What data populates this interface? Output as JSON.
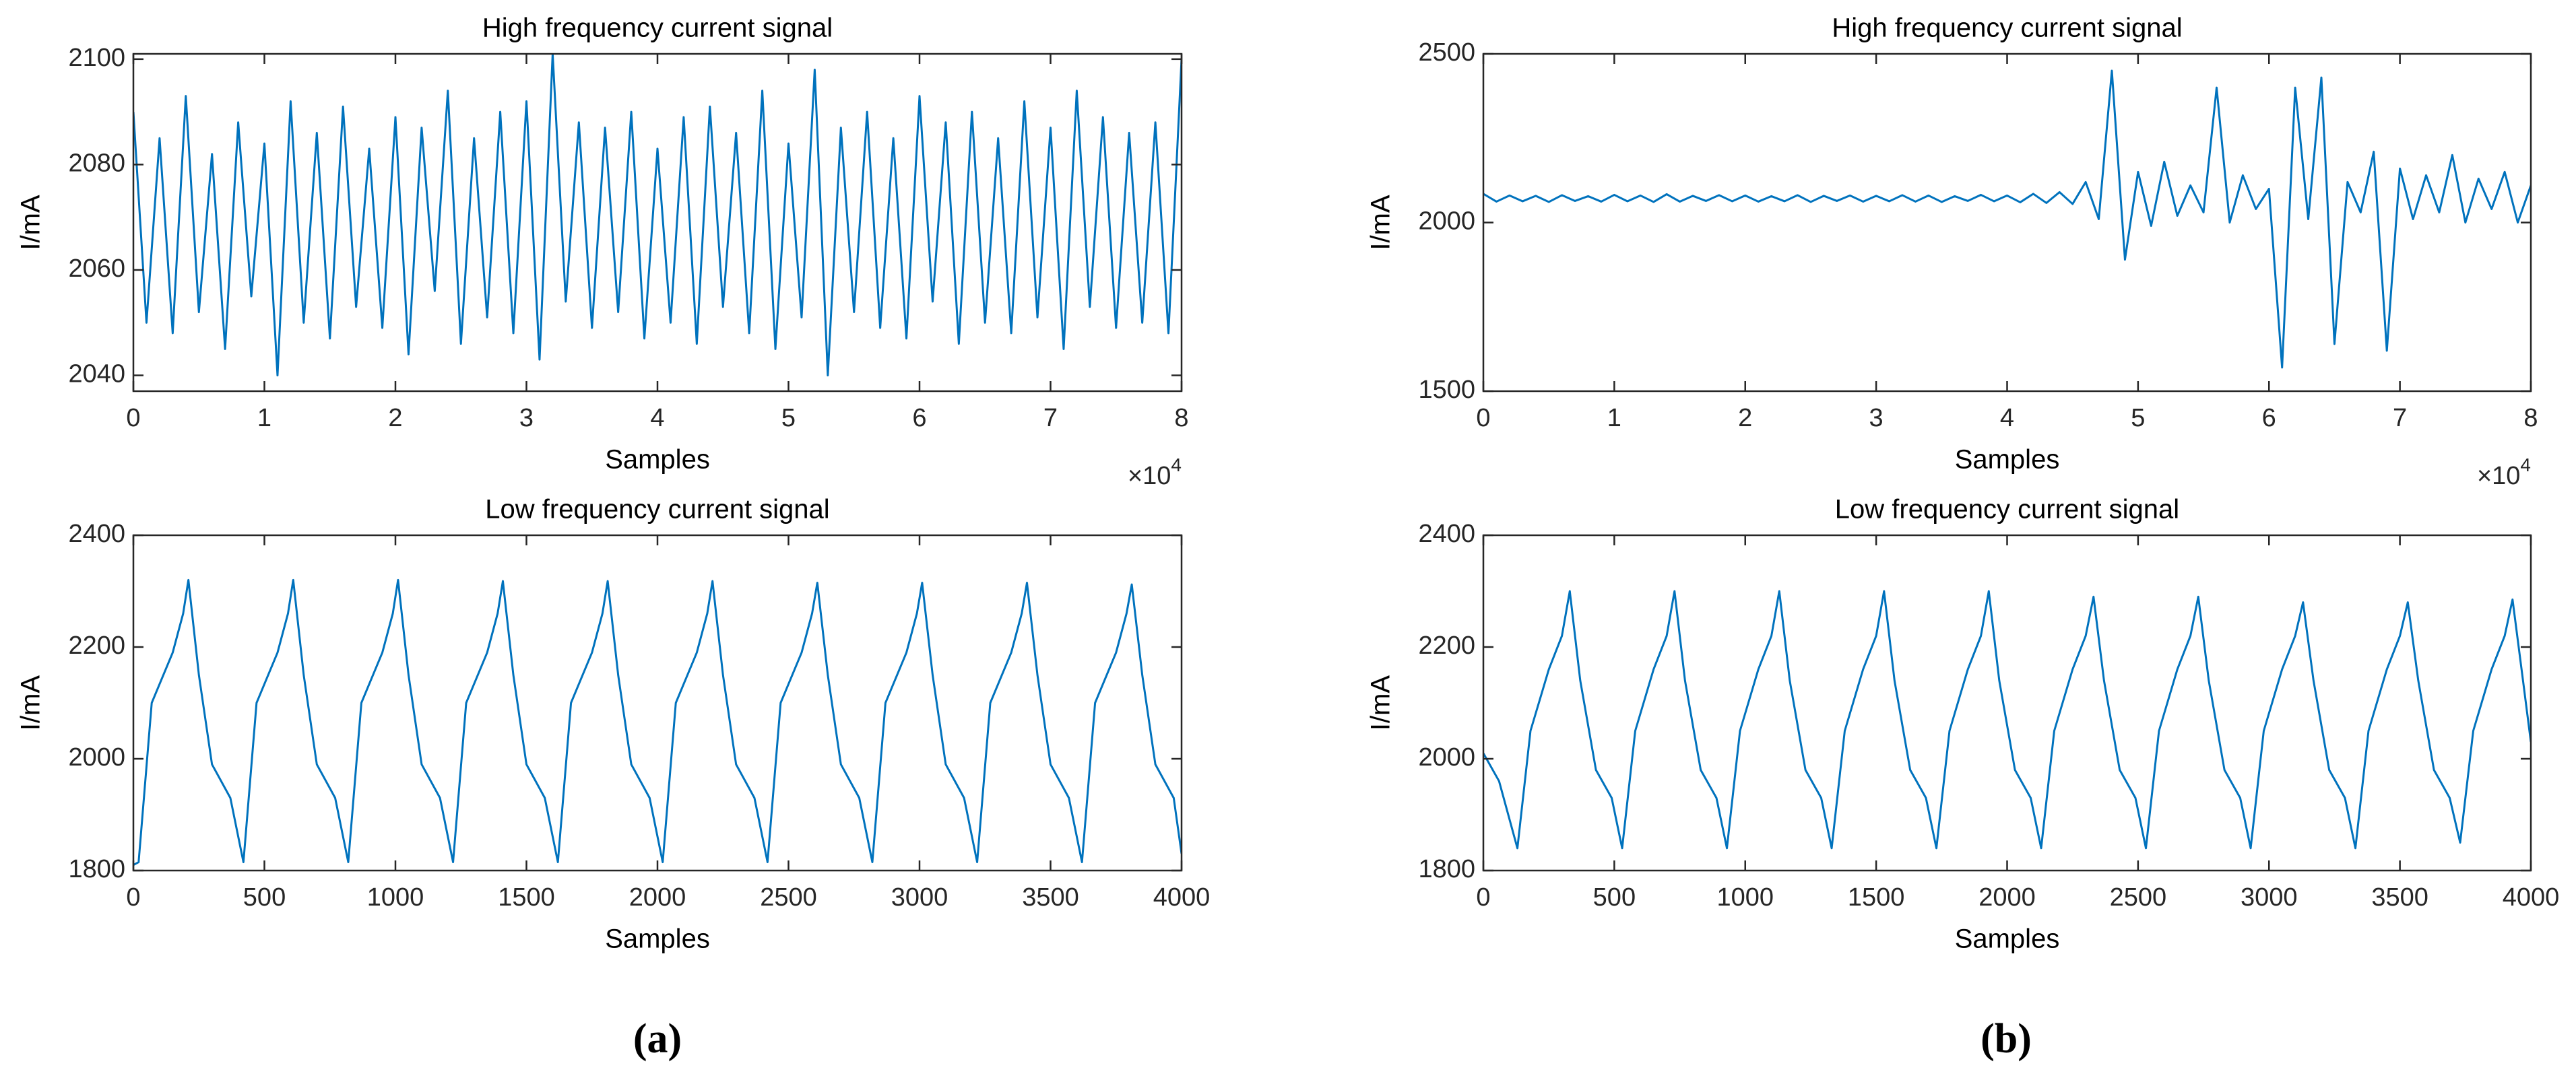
{
  "chart_data": [
    {
      "type": "line",
      "title": "High frequency current signal",
      "xlabel": "Samples",
      "ylabel": "I/mA",
      "color": "#0072bd",
      "x_multiplier": {
        "base": "×10",
        "exponent": "4"
      },
      "xlim": [
        0,
        80000
      ],
      "ylim": [
        2037,
        2101
      ],
      "xticks": [
        0,
        {
          "value": 10000,
          "label": "1"
        },
        {
          "value": 20000,
          "label": "2"
        },
        {
          "value": 30000,
          "label": "3"
        },
        {
          "value": 40000,
          "label": "4"
        },
        {
          "value": 50000,
          "label": "5"
        },
        {
          "value": 60000,
          "label": "6"
        },
        {
          "value": 70000,
          "label": "7"
        },
        {
          "value": 80000,
          "label": "8"
        }
      ],
      "yticks": [
        2040,
        2060,
        2080,
        2100
      ],
      "x": [
        0,
        1000,
        2000,
        3000,
        4000,
        5000,
        6000,
        7000,
        8000,
        9000,
        10000,
        11000,
        12000,
        13000,
        14000,
        15000,
        16000,
        17000,
        18000,
        19000,
        20000,
        21000,
        22000,
        23000,
        24000,
        25000,
        26000,
        27000,
        28000,
        29000,
        30000,
        31000,
        32000,
        33000,
        34000,
        35000,
        36000,
        37000,
        38000,
        39000,
        40000,
        41000,
        42000,
        43000,
        44000,
        45000,
        46000,
        47000,
        48000,
        49000,
        50000,
        51000,
        52000,
        53000,
        54000,
        55000,
        56000,
        57000,
        58000,
        59000,
        60000,
        61000,
        62000,
        63000,
        64000,
        65000,
        66000,
        67000,
        68000,
        69000,
        70000,
        71000,
        72000,
        73000,
        74000,
        75000,
        76000,
        77000,
        78000,
        79000,
        80000
      ],
      "values": [
        2090,
        2050,
        2085,
        2048,
        2093,
        2052,
        2082,
        2045,
        2088,
        2055,
        2084,
        2040,
        2092,
        2050,
        2086,
        2047,
        2091,
        2053,
        2083,
        2049,
        2089,
        2044,
        2087,
        2056,
        2094,
        2046,
        2085,
        2051,
        2090,
        2048,
        2092,
        2043,
        2101,
        2054,
        2088,
        2049,
        2087,
        2052,
        2090,
        2047,
        2083,
        2050,
        2089,
        2046,
        2091,
        2053,
        2086,
        2048,
        2094,
        2045,
        2084,
        2051,
        2098,
        2040,
        2087,
        2052,
        2090,
        2049,
        2085,
        2047,
        2093,
        2054,
        2088,
        2046,
        2090,
        2050,
        2085,
        2048,
        2092,
        2051,
        2087,
        2045,
        2094,
        2053,
        2089,
        2049,
        2086,
        2050,
        2088,
        2048,
        2100
      ]
    },
    {
      "type": "line",
      "title": "High frequency current signal",
      "xlabel": "Samples",
      "ylabel": "I/mA",
      "color": "#0072bd",
      "x_multiplier": {
        "base": "×10",
        "exponent": "4"
      },
      "xlim": [
        0,
        80000
      ],
      "ylim": [
        1500,
        2500
      ],
      "xticks": [
        0,
        {
          "value": 10000,
          "label": "1"
        },
        {
          "value": 20000,
          "label": "2"
        },
        {
          "value": 30000,
          "label": "3"
        },
        {
          "value": 40000,
          "label": "4"
        },
        {
          "value": 50000,
          "label": "5"
        },
        {
          "value": 60000,
          "label": "6"
        },
        {
          "value": 70000,
          "label": "7"
        },
        {
          "value": 80000,
          "label": "8"
        }
      ],
      "yticks": [
        1500,
        2000,
        2500
      ],
      "x": [
        0,
        1000,
        2000,
        3000,
        4000,
        5000,
        6000,
        7000,
        8000,
        9000,
        10000,
        11000,
        12000,
        13000,
        14000,
        15000,
        16000,
        17000,
        18000,
        19000,
        20000,
        21000,
        22000,
        23000,
        24000,
        25000,
        26000,
        27000,
        28000,
        29000,
        30000,
        31000,
        32000,
        33000,
        34000,
        35000,
        36000,
        37000,
        38000,
        39000,
        40000,
        41000,
        42000,
        43000,
        44000,
        45000,
        46000,
        47000,
        48000,
        49000,
        50000,
        51000,
        52000,
        53000,
        54000,
        55000,
        56000,
        57000,
        58000,
        59000,
        60000,
        61000,
        62000,
        63000,
        64000,
        65000,
        66000,
        67000,
        68000,
        69000,
        70000,
        71000,
        72000,
        73000,
        74000,
        75000,
        76000,
        77000,
        78000,
        79000,
        80000
      ],
      "values": [
        2085,
        2062,
        2080,
        2063,
        2079,
        2061,
        2081,
        2064,
        2078,
        2062,
        2082,
        2063,
        2080,
        2061,
        2084,
        2062,
        2079,
        2064,
        2081,
        2063,
        2080,
        2062,
        2078,
        2063,
        2081,
        2061,
        2079,
        2064,
        2080,
        2062,
        2079,
        2063,
        2081,
        2062,
        2080,
        2061,
        2078,
        2064,
        2082,
        2063,
        2080,
        2060,
        2085,
        2058,
        2090,
        2055,
        2120,
        2010,
        2450,
        1890,
        2150,
        1990,
        2180,
        2020,
        2110,
        2030,
        2400,
        2000,
        2140,
        2040,
        2100,
        1570,
        2400,
        2010,
        2430,
        1640,
        2120,
        2030,
        2210,
        1620,
        2160,
        2010,
        2140,
        2030,
        2200,
        2000,
        2130,
        2040,
        2150,
        2000,
        2110
      ]
    },
    {
      "type": "line",
      "title": "Low frequency current signal",
      "xlabel": "Samples",
      "ylabel": "I/mA",
      "color": "#0072bd",
      "xlim": [
        0,
        4000
      ],
      "ylim": [
        1800,
        2400
      ],
      "xticks": [
        0,
        500,
        1000,
        1500,
        2000,
        2500,
        3000,
        3500,
        4000
      ],
      "yticks": [
        1800,
        2000,
        2200,
        2400
      ],
      "x": [
        0,
        20,
        70,
        150,
        190,
        210,
        250,
        300,
        370,
        420,
        470,
        550,
        590,
        610,
        650,
        700,
        770,
        820,
        870,
        950,
        990,
        1010,
        1050,
        1100,
        1170,
        1220,
        1270,
        1350,
        1390,
        1410,
        1450,
        1500,
        1570,
        1620,
        1670,
        1750,
        1790,
        1810,
        1850,
        1900,
        1970,
        2020,
        2070,
        2150,
        2190,
        2210,
        2250,
        2300,
        2370,
        2420,
        2470,
        2550,
        2590,
        2610,
        2650,
        2700,
        2770,
        2820,
        2870,
        2950,
        2990,
        3010,
        3050,
        3100,
        3170,
        3220,
        3270,
        3350,
        3390,
        3410,
        3450,
        3500,
        3570,
        3620,
        3670,
        3750,
        3790,
        3810,
        3850,
        3900,
        3970,
        4000
      ],
      "values": [
        1810,
        1815,
        2100,
        2190,
        2260,
        2320,
        2150,
        1990,
        1930,
        1815,
        2100,
        2190,
        2260,
        2320,
        2150,
        1990,
        1930,
        1815,
        2100,
        2190,
        2260,
        2320,
        2150,
        1990,
        1930,
        1815,
        2100,
        2190,
        2260,
        2318,
        2150,
        1990,
        1930,
        1815,
        2100,
        2190,
        2260,
        2318,
        2150,
        1990,
        1930,
        1815,
        2100,
        2190,
        2260,
        2318,
        2150,
        1990,
        1930,
        1815,
        2100,
        2190,
        2260,
        2315,
        2150,
        1990,
        1930,
        1815,
        2100,
        2190,
        2260,
        2315,
        2150,
        1990,
        1930,
        1815,
        2100,
        2190,
        2260,
        2315,
        2150,
        1990,
        1930,
        1815,
        2100,
        2190,
        2260,
        2312,
        2150,
        1990,
        1930,
        1830
      ]
    },
    {
      "type": "line",
      "title": "Low frequency current signal",
      "xlabel": "Samples",
      "ylabel": "I/mA",
      "color": "#0072bd",
      "xlim": [
        0,
        4000
      ],
      "ylim": [
        1800,
        2400
      ],
      "xticks": [
        0,
        500,
        1000,
        1500,
        2000,
        2500,
        3000,
        3500,
        4000
      ],
      "yticks": [
        1800,
        2000,
        2200,
        2400
      ],
      "x": [
        0,
        60,
        130,
        180,
        250,
        300,
        330,
        370,
        430,
        490,
        530,
        580,
        650,
        700,
        730,
        770,
        830,
        890,
        930,
        980,
        1050,
        1100,
        1130,
        1170,
        1230,
        1290,
        1330,
        1380,
        1450,
        1500,
        1530,
        1570,
        1630,
        1690,
        1730,
        1780,
        1850,
        1900,
        1930,
        1970,
        2030,
        2090,
        2130,
        2180,
        2250,
        2300,
        2330,
        2370,
        2430,
        2490,
        2530,
        2580,
        2650,
        2700,
        2730,
        2770,
        2830,
        2890,
        2930,
        2980,
        3050,
        3100,
        3130,
        3170,
        3230,
        3290,
        3330,
        3380,
        3450,
        3500,
        3530,
        3570,
        3630,
        3690,
        3730,
        3780,
        3850,
        3900,
        3930,
        3970,
        4000
      ],
      "values": [
        2010,
        1960,
        1840,
        2050,
        2160,
        2220,
        2300,
        2140,
        1980,
        1930,
        1840,
        2050,
        2160,
        2220,
        2300,
        2140,
        1980,
        1930,
        1840,
        2050,
        2160,
        2220,
        2300,
        2140,
        1980,
        1930,
        1840,
        2050,
        2160,
        2220,
        2300,
        2140,
        1980,
        1930,
        1840,
        2050,
        2160,
        2220,
        2300,
        2140,
        1980,
        1930,
        1840,
        2050,
        2160,
        2220,
        2290,
        2140,
        1980,
        1930,
        1840,
        2050,
        2160,
        2220,
        2290,
        2140,
        1980,
        1930,
        1840,
        2050,
        2160,
        2220,
        2280,
        2140,
        1980,
        1930,
        1840,
        2050,
        2160,
        2220,
        2280,
        2140,
        1980,
        1930,
        1850,
        2050,
        2160,
        2220,
        2285,
        2140,
        2030
      ]
    }
  ],
  "captions": [
    "(a)",
    "(b)"
  ]
}
